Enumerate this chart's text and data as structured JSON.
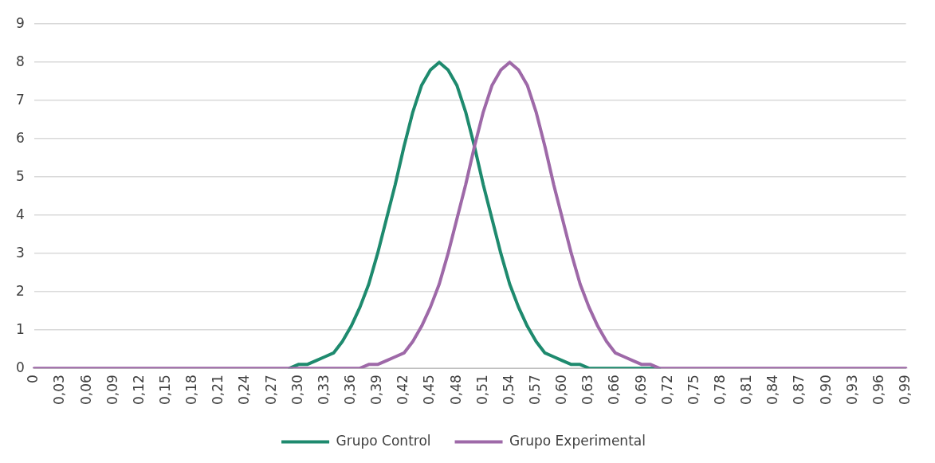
{
  "chart_data": {
    "type": "line",
    "categories": [
      "0",
      null,
      null,
      "0,03",
      null,
      null,
      "0,06",
      null,
      null,
      "0,09",
      null,
      null,
      "0,12",
      null,
      null,
      "0,15",
      null,
      null,
      "0,18",
      null,
      null,
      "0,21",
      null,
      null,
      "0,24",
      null,
      null,
      "0,27",
      null,
      null,
      "0,30",
      null,
      null,
      "0,33",
      null,
      null,
      "0,36",
      null,
      null,
      "0,39",
      null,
      null,
      "0,42",
      null,
      null,
      "0,45",
      null,
      null,
      "0,48",
      null,
      null,
      "0,51",
      null,
      null,
      "0,54",
      null,
      null,
      "0,57",
      null,
      null,
      "0,60",
      null,
      null,
      "0,63",
      null,
      null,
      "0,66",
      null,
      null,
      "0,69",
      null,
      null,
      "0,72",
      null,
      null,
      "0,75",
      null,
      null,
      "0,78",
      null,
      null,
      "0,81",
      null,
      null,
      "0,84",
      null,
      null,
      "0,87",
      null,
      null,
      "0,90",
      null,
      null,
      "0,93",
      null,
      null,
      "0,96",
      null,
      null,
      "0,99"
    ],
    "series": [
      {
        "name": "Grupo Control",
        "color": "#1e8a6e",
        "values": [
          null,
          null,
          null,
          null,
          null,
          null,
          null,
          null,
          null,
          null,
          null,
          null,
          null,
          null,
          null,
          null,
          null,
          null,
          null,
          null,
          null,
          null,
          null,
          null,
          null,
          null,
          null,
          null,
          null,
          0,
          0.1,
          0.1,
          0.2,
          0.3,
          0.4,
          0.7,
          1.1,
          1.6,
          2.2,
          3.0,
          3.9,
          4.8,
          5.8,
          6.7,
          7.4,
          7.8,
          8.0,
          7.8,
          7.4,
          6.7,
          5.8,
          4.8,
          3.9,
          3.0,
          2.2,
          1.6,
          1.1,
          0.7,
          0.4,
          0.3,
          0.2,
          0.1,
          0.1,
          0,
          0,
          0,
          0,
          0,
          0,
          0,
          0,
          0,
          null,
          null,
          null,
          null,
          null,
          null,
          null,
          null,
          null,
          null,
          null,
          null,
          null,
          null,
          null,
          null,
          null,
          null,
          null,
          null,
          null,
          null,
          null,
          null,
          null,
          null,
          null,
          null
        ]
      },
      {
        "name": "Grupo Experimental",
        "color": "#9e69a8",
        "values": [
          0,
          0,
          0,
          0,
          0,
          0,
          0,
          0,
          0,
          0,
          0,
          0,
          0,
          0,
          0,
          0,
          0,
          0,
          0,
          0,
          0,
          0,
          0,
          0,
          0,
          0,
          0,
          0,
          0,
          0,
          0,
          0,
          0,
          0,
          0,
          0,
          0,
          0,
          0.1,
          0.1,
          0.2,
          0.3,
          0.4,
          0.7,
          1.1,
          1.6,
          2.2,
          3.0,
          3.9,
          4.8,
          5.8,
          6.7,
          7.4,
          7.8,
          8.0,
          7.8,
          7.4,
          6.7,
          5.8,
          4.8,
          3.9,
          3.0,
          2.2,
          1.6,
          1.1,
          0.7,
          0.4,
          0.3,
          0.2,
          0.1,
          0.1,
          0,
          0,
          0,
          0,
          0,
          0,
          0,
          0,
          0,
          0,
          0,
          0,
          0,
          0,
          0,
          0,
          0,
          0,
          0,
          0,
          0,
          0,
          0,
          0,
          0,
          0,
          0,
          0,
          0
        ]
      }
    ],
    "ylim": [
      0,
      9
    ],
    "yticks": [
      0,
      1,
      2,
      3,
      4,
      5,
      6,
      7,
      8,
      9
    ],
    "grid": "y",
    "legend": "bottom"
  }
}
